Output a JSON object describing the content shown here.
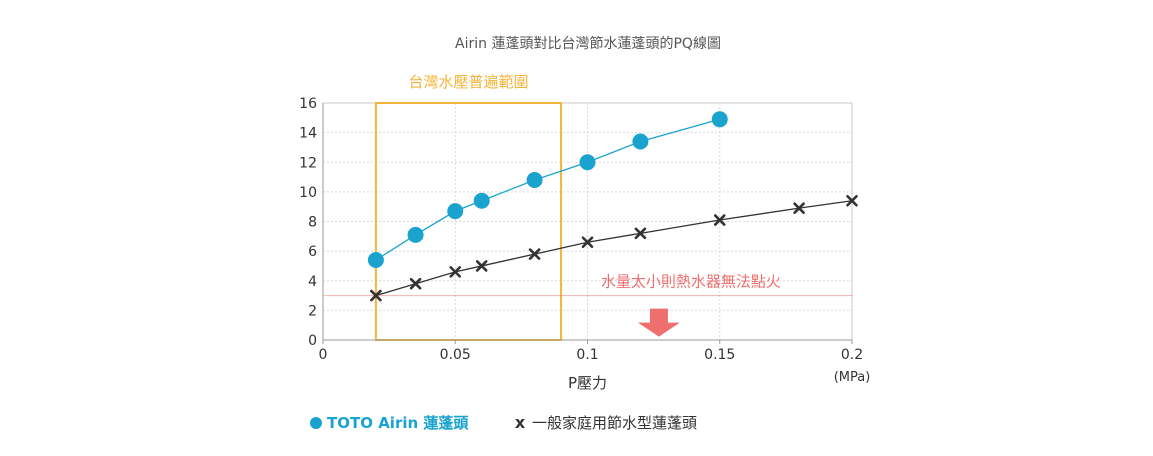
{
  "chart_data": {
    "type": "line",
    "title": "Airin 蓮蓬頭對比台灣節水蓮蓬頭的PQ線圖",
    "xlabel": "P壓力",
    "x_unit": "(MPa)",
    "ylabel": "",
    "xlim": [
      0,
      0.2
    ],
    "ylim": [
      0,
      16
    ],
    "x_ticks": [
      {
        "value": 0,
        "label": "0"
      },
      {
        "value": 0.05,
        "label": "0.05"
      },
      {
        "value": 0.1,
        "label": "0.1"
      },
      {
        "value": 0.15,
        "label": "0.15"
      },
      {
        "value": 0.2,
        "label": "0.2"
      }
    ],
    "y_ticks": [
      {
        "value": 0,
        "label": "0"
      },
      {
        "value": 2,
        "label": "2"
      },
      {
        "value": 4,
        "label": "4"
      },
      {
        "value": 6,
        "label": "6"
      },
      {
        "value": 8,
        "label": "8"
      },
      {
        "value": 10,
        "label": "10"
      },
      {
        "value": 12,
        "label": "12"
      },
      {
        "value": 14,
        "label": "14"
      },
      {
        "value": 16,
        "label": "16"
      }
    ],
    "grid": true,
    "legend_position": "bottom-left",
    "series": [
      {
        "name": "TOTO Airin 蓮蓬頭",
        "marker": "circle",
        "color": "#1aa3cf",
        "x": [
          0.02,
          0.035,
          0.05,
          0.06,
          0.08,
          0.1,
          0.12,
          0.15
        ],
        "y": [
          5.4,
          7.1,
          8.7,
          9.4,
          10.8,
          12.0,
          13.4,
          14.9
        ]
      },
      {
        "name": "一般家庭用節水型蓮蓬頭",
        "marker": "x",
        "color": "#333333",
        "x": [
          0.02,
          0.035,
          0.05,
          0.06,
          0.08,
          0.1,
          0.12,
          0.15,
          0.18,
          0.2
        ],
        "y": [
          3.0,
          3.8,
          4.6,
          5.0,
          5.8,
          6.6,
          7.2,
          8.1,
          8.9,
          9.4
        ]
      }
    ],
    "annotations": {
      "range_box": {
        "label": "台灣水壓普遍範圍",
        "x_start": 0.02,
        "x_end": 0.09,
        "color": "#f5b43a"
      },
      "threshold_line": {
        "label": "水量太小則熱水器無法點火",
        "y": 3.0,
        "color": "#ef6f6f",
        "arrow_x": 0.127
      }
    },
    "legend": {
      "marker_symbol_x": "x"
    }
  }
}
